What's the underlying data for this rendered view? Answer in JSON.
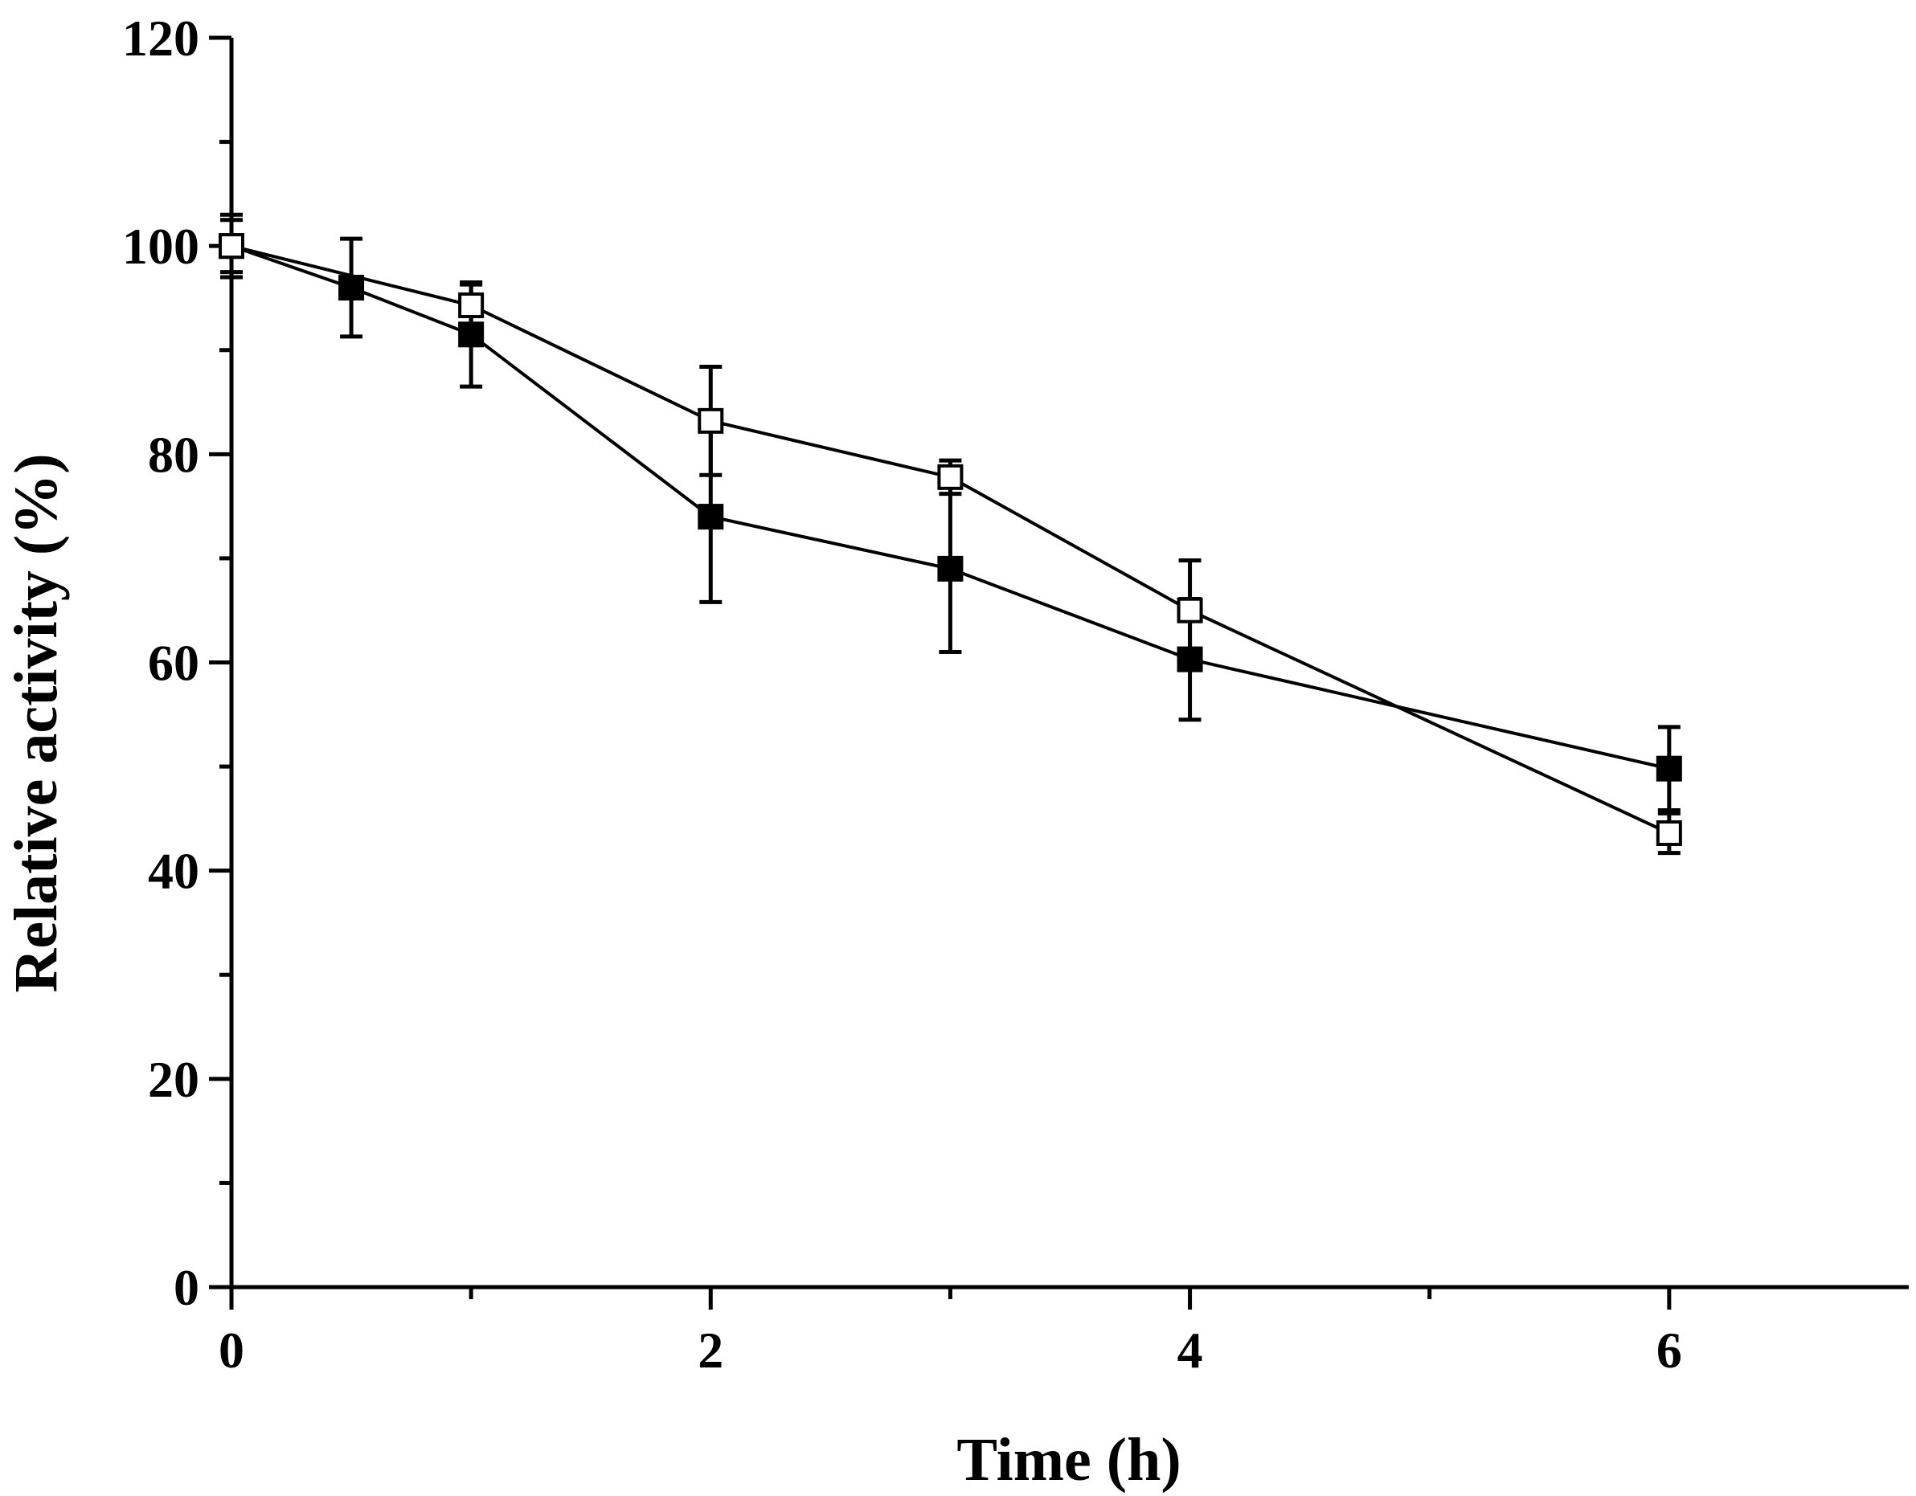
{
  "chart_data": {
    "type": "line",
    "title": "",
    "xlabel": "Time (h)",
    "ylabel": "Relative activity (%)",
    "xlim": [
      0,
      7
    ],
    "ylim": [
      0,
      120
    ],
    "x_ticks": [
      0,
      2,
      4,
      6
    ],
    "x_tick_labels": [
      "0",
      "2",
      "4",
      "6"
    ],
    "x_minor_ticks": [
      1,
      3,
      5
    ],
    "y_ticks": [
      0,
      20,
      40,
      60,
      80,
      100,
      120
    ],
    "y_tick_labels": [
      "0",
      "20",
      "40",
      "60",
      "80",
      "100",
      "120"
    ],
    "y_minor_ticks": [
      10,
      30,
      50,
      70,
      90,
      110
    ],
    "grid": false,
    "series": [
      {
        "name": "filled squares",
        "marker": "filled-square",
        "color": "#000000",
        "x": [
          0,
          0.5,
          1,
          2,
          3,
          4,
          6
        ],
        "values": [
          100,
          96,
          91.5,
          74,
          69,
          60.3,
          49.8
        ],
        "errors": [
          3,
          4.7,
          5,
          8.2,
          8,
          5.8,
          4
        ]
      },
      {
        "name": "open squares",
        "marker": "open-square",
        "color": "#000000",
        "x": [
          0,
          1,
          2,
          3,
          4,
          6
        ],
        "values": [
          100,
          94.3,
          83.2,
          77.8,
          65,
          43.6
        ],
        "errors": [
          2.5,
          2,
          5.2,
          1.6,
          4.8,
          1.9
        ]
      }
    ]
  }
}
